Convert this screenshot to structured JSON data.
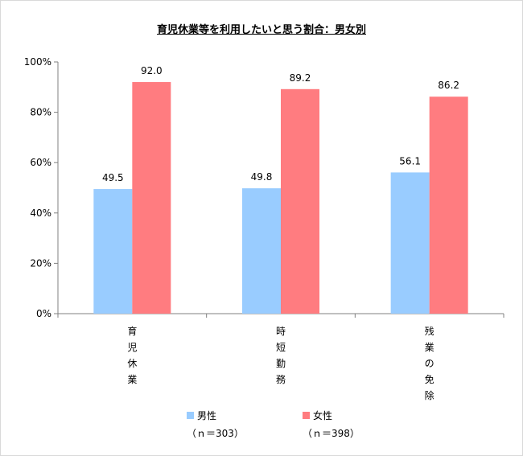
{
  "chart_data": {
    "type": "bar",
    "title": "育児休業等を利用したいと思う割合：男女別",
    "categories": [
      "育児休業",
      "時短勤務",
      "残業の免除"
    ],
    "series": [
      {
        "name": "男性",
        "values": [
          49.5,
          49.8,
          56.1
        ],
        "color": "#99ccff",
        "n_label": "（ｎ＝303）"
      },
      {
        "name": "女性",
        "values": [
          92.0,
          89.2,
          86.2
        ],
        "color": "#ff7c80",
        "n_label": "（ｎ＝398）"
      }
    ],
    "data_labels": [
      [
        "49.5",
        "49.8",
        "56.1"
      ],
      [
        "92.0",
        "89.2",
        "86.2"
      ]
    ],
    "ylim": [
      0,
      100
    ],
    "yticks": [
      "0%",
      "20%",
      "40%",
      "60%",
      "80%",
      "100%"
    ],
    "ytick_values": [
      0,
      20,
      40,
      60,
      80,
      100
    ],
    "grid": false,
    "legend_position": "bottom",
    "xlabel": "",
    "ylabel": ""
  }
}
